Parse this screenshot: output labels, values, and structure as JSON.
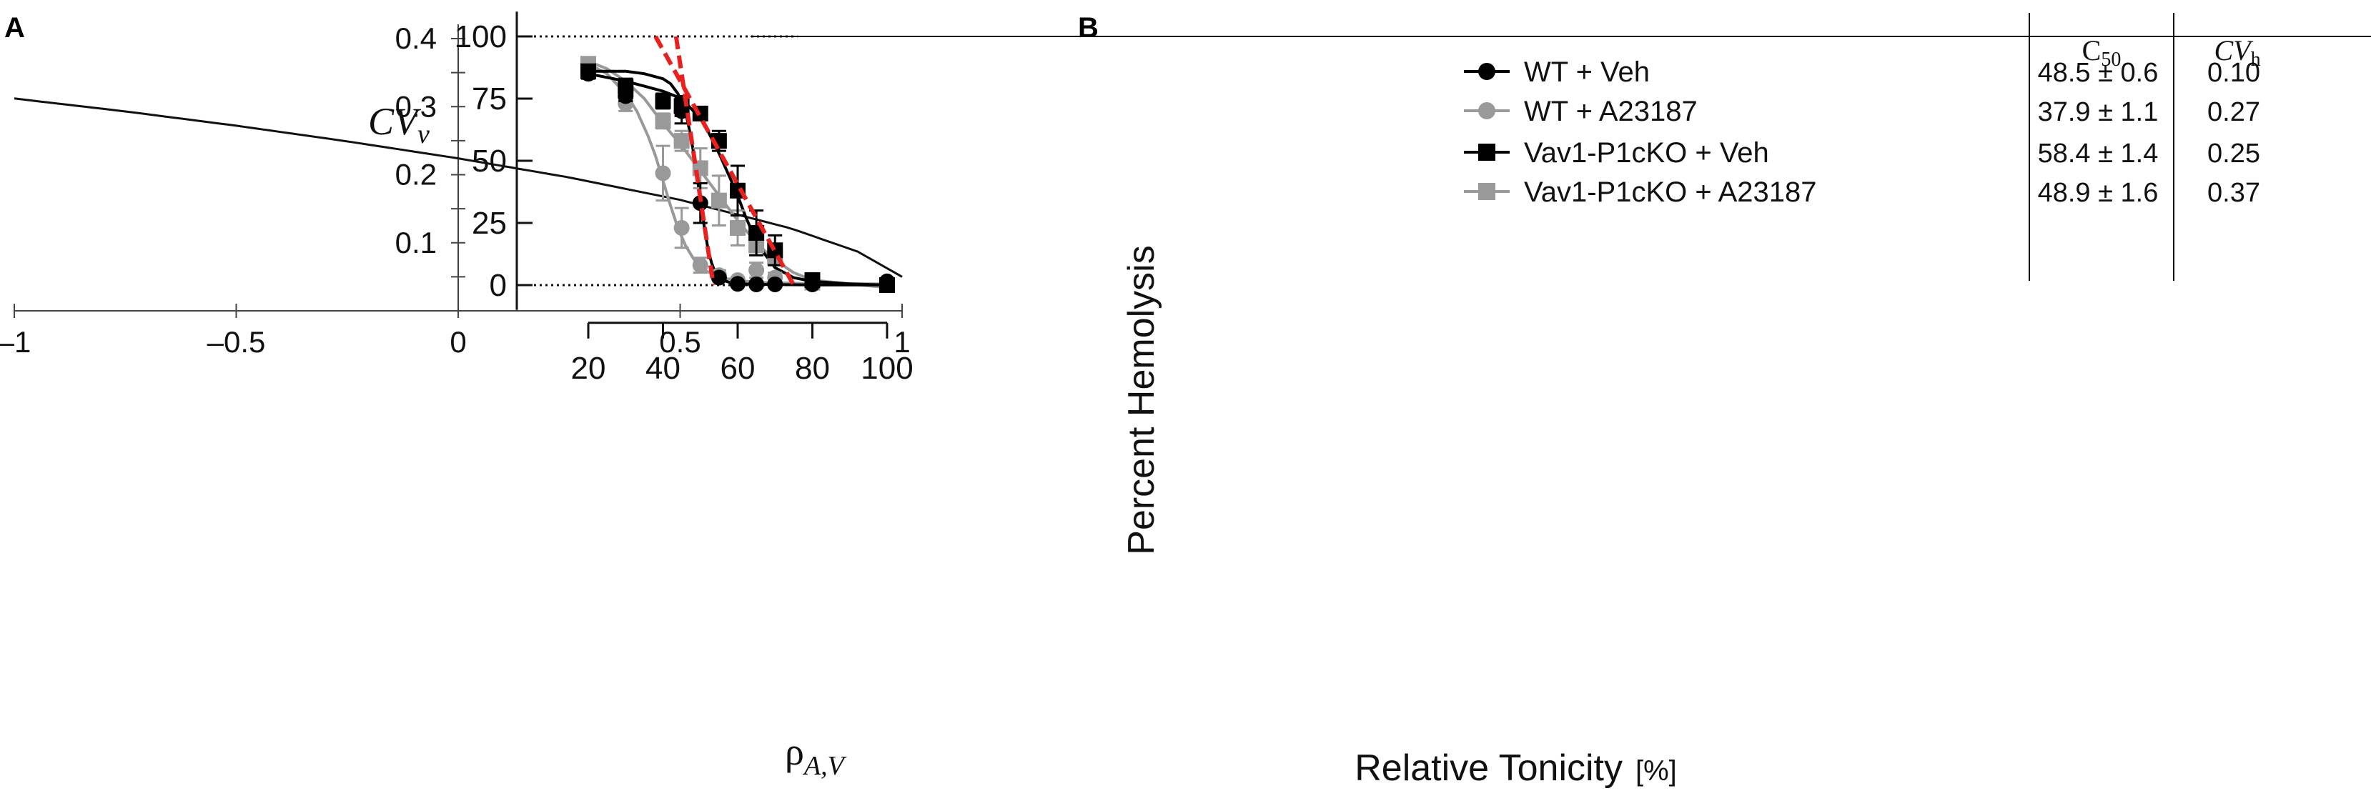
{
  "chart_data": [
    {
      "panel": "A",
      "type": "line",
      "xlabel": "ρ",
      "xlabel_sub": "A,V",
      "ylabel": "CV",
      "ylabel_sub": "v",
      "xlim": [
        -1,
        1
      ],
      "ylim": [
        0,
        0.4
      ],
      "x_ticks": [
        "–1",
        "–0.5",
        "0",
        "0.5",
        "1"
      ],
      "x_tick_values": [
        -1,
        -0.5,
        0,
        0.5,
        1
      ],
      "y_ticks": [
        "0.1",
        "0.2",
        "0.3",
        "0.4"
      ],
      "y_tick_values": [
        0.1,
        0.2,
        0.3,
        0.4
      ],
      "series": [
        {
          "name": "CVv",
          "x": [
            -1.0,
            -0.75,
            -0.5,
            -0.25,
            0.0,
            0.25,
            0.5,
            0.75,
            0.9,
            1.0
          ],
          "values": [
            0.312,
            0.293,
            0.272,
            0.249,
            0.224,
            0.196,
            0.163,
            0.121,
            0.087,
            0.05
          ]
        }
      ]
    },
    {
      "panel": "B",
      "type": "scatter",
      "xlabel": "Relative Tonicity",
      "xlabel_unit": "[%]",
      "ylabel": "Percent Hemolysis",
      "xlim": [
        20,
        100
      ],
      "ylim": [
        -10,
        110
      ],
      "x_ticks": [
        "20",
        "40",
        "60",
        "80",
        "100"
      ],
      "x_tick_values": [
        20,
        40,
        60,
        80,
        100
      ],
      "y_ticks": [
        "0",
        "25",
        "50",
        "75",
        "100"
      ],
      "y_tick_values": [
        0,
        25,
        50,
        75,
        100
      ],
      "reference_lines": [
        0,
        100
      ],
      "table_headers": {
        "c50": "C",
        "c50_sub": "50",
        "cvh": "CV",
        "cvh_sub": "h"
      },
      "series": [
        {
          "name": "WT + Veh",
          "marker": "circle",
          "color": "#000000",
          "c50": "48.5 ± 0.6",
          "cvh": "0.10",
          "x": [
            20,
            30,
            40,
            45,
            50,
            55,
            60,
            65,
            70,
            80,
            100
          ],
          "values": [
            85,
            76,
            74,
            70,
            33,
            3,
            0.5,
            0.3,
            0.3,
            0.3,
            1.5
          ],
          "errors": [
            2,
            2,
            2,
            5,
            8,
            1,
            0.5,
            0.5,
            0.5,
            0.5,
            0.5
          ]
        },
        {
          "name": "WT + A23187",
          "marker": "circle",
          "color": "#999999",
          "c50": "37.9 ± 1.1",
          "cvh": "0.27",
          "x": [
            20,
            30,
            40,
            45,
            50,
            55,
            60,
            65,
            70
          ],
          "values": [
            88,
            73,
            45,
            23,
            8,
            4,
            2,
            6,
            3
          ],
          "errors": [
            2,
            3,
            11,
            8,
            3,
            2,
            1,
            3,
            2
          ]
        },
        {
          "name": "Vav1-P1cKO + Veh",
          "marker": "square",
          "color": "#000000",
          "c50": "58.4 ± 1.4",
          "cvh": "0.25",
          "x": [
            20,
            30,
            40,
            45,
            50,
            55,
            60,
            65,
            70,
            80,
            100
          ],
          "values": [
            86,
            80,
            74,
            72,
            69,
            58,
            38,
            21,
            14,
            2,
            0
          ],
          "errors": [
            2,
            3,
            3,
            4,
            2,
            4,
            10,
            9,
            6,
            1,
            0.5
          ]
        },
        {
          "name": "Vav1-P1cKO + A23187",
          "marker": "square",
          "color": "#999999",
          "c50": "48.9 ± 1.6",
          "cvh": "0.37",
          "x": [
            20,
            30,
            40,
            45,
            50,
            55,
            60,
            65,
            70,
            80,
            100
          ],
          "values": [
            89,
            78,
            66,
            58,
            47,
            34,
            23,
            16,
            11,
            1,
            0
          ],
          "errors": [
            2,
            3,
            3,
            4,
            8,
            10,
            7,
            4,
            3,
            1,
            0.5
          ]
        }
      ],
      "fit_curves": [
        {
          "name": "WT + Veh fit",
          "color": "#000000",
          "x": [
            20,
            25,
            30,
            35,
            40,
            42,
            44,
            46,
            47,
            48,
            49,
            50,
            51,
            52,
            53,
            54,
            56,
            58,
            60,
            65,
            70,
            80,
            100
          ],
          "values": [
            86,
            86,
            86,
            85,
            83,
            81,
            77,
            70,
            63,
            55,
            45,
            34,
            24,
            15,
            9,
            5,
            2,
            1,
            0.5,
            0.3,
            0.2,
            0.1,
            0.1
          ]
        },
        {
          "name": "WT + A23187 fit",
          "color": "#999999",
          "x": [
            20,
            25,
            30,
            33,
            36,
            38,
            40,
            42,
            44,
            46,
            48,
            50,
            55,
            60,
            65,
            70,
            80,
            100
          ],
          "values": [
            89,
            85,
            77,
            70,
            60,
            52,
            42,
            32,
            23,
            16,
            11,
            7,
            3,
            2,
            1,
            1,
            0.5,
            0.5
          ]
        },
        {
          "name": "Vav1-P1cKO + Veh fit",
          "color": "#000000",
          "x": [
            20,
            30,
            35,
            40,
            45,
            50,
            52,
            55,
            58,
            60,
            62,
            64,
            66,
            68,
            70,
            75,
            80,
            90,
            100
          ],
          "values": [
            85,
            82,
            80,
            78,
            75,
            67,
            62,
            53,
            43,
            36,
            28,
            21,
            15,
            11,
            7,
            3,
            1.5,
            0.5,
            0
          ]
        },
        {
          "name": "Vav1-P1cKO + A23187 fit",
          "color": "#999999",
          "x": [
            20,
            25,
            30,
            35,
            40,
            45,
            50,
            55,
            60,
            65,
            70,
            75,
            80,
            90,
            100
          ],
          "values": [
            90,
            87,
            82,
            75,
            65,
            56,
            46,
            36,
            26,
            17,
            10,
            5,
            2,
            0.5,
            -1
          ]
        }
      ],
      "slope_lines": [
        {
          "color": "#e8211f",
          "x": [
            38,
            75
          ],
          "values": [
            100,
            0
          ]
        },
        {
          "color": "#e8211f",
          "x": [
            43.5,
            53.5
          ],
          "values": [
            100,
            0
          ]
        }
      ]
    }
  ]
}
